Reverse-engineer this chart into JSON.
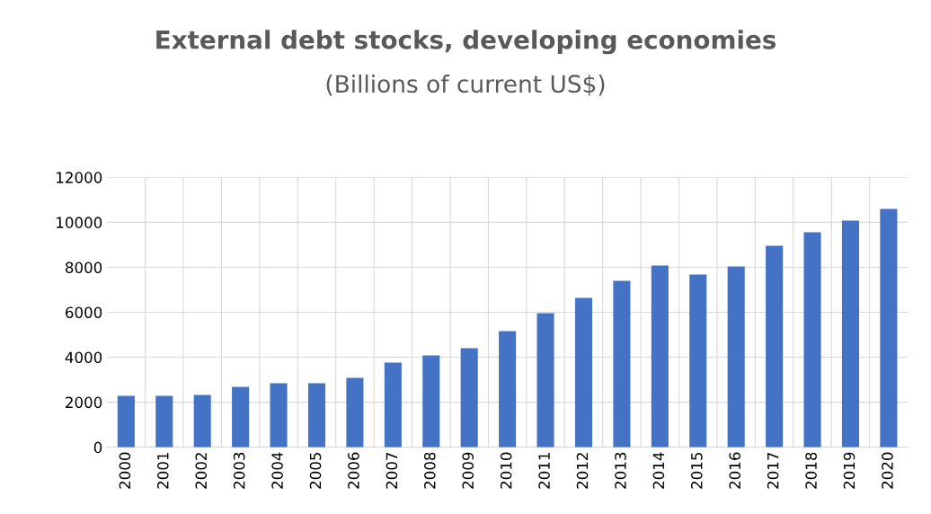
{
  "chart_data": {
    "type": "bar",
    "title": "External debt stocks, developing economies",
    "subtitle": "(Billions of current US$)",
    "categories": [
      "2000",
      "2001",
      "2002",
      "2003",
      "2004",
      "2005",
      "2006",
      "2007",
      "2008",
      "2009",
      "2010",
      "2011",
      "2012",
      "2013",
      "2014",
      "2015",
      "2016",
      "2017",
      "2018",
      "2019",
      "2020"
    ],
    "values": [
      2280,
      2280,
      2320,
      2680,
      2840,
      2840,
      3080,
      3760,
      4080,
      4400,
      5160,
      5960,
      6640,
      7400,
      8080,
      7680,
      8040,
      8960,
      9560,
      10080,
      10600
    ],
    "color": "#4472c4",
    "ylim": [
      0,
      12000
    ],
    "yticks": [
      0,
      2000,
      4000,
      6000,
      8000,
      10000,
      12000
    ],
    "grid": true
  }
}
